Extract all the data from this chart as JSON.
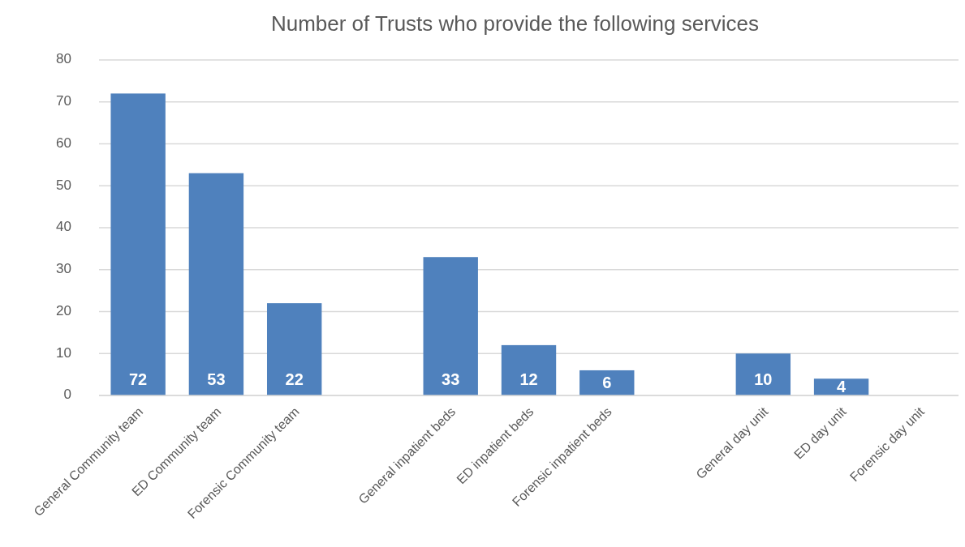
{
  "chart_data": {
    "type": "bar",
    "title": "Number of Trusts who provide the following services",
    "categories": [
      "General Community team",
      "ED Community team",
      "Forensic Community team",
      null,
      "General inpatient beds",
      "ED inpatient beds",
      "Forensic inpatient beds",
      null,
      "General day unit",
      "ED day unit",
      "Forensic day unit"
    ],
    "values": [
      72,
      53,
      22,
      null,
      33,
      12,
      6,
      null,
      10,
      4,
      null
    ],
    "color": "#4f81bd",
    "ylim": [
      0,
      80
    ],
    "yticks": [
      0,
      10,
      20,
      30,
      40,
      50,
      60,
      70,
      80
    ],
    "grid": "y",
    "data_labels": true
  }
}
